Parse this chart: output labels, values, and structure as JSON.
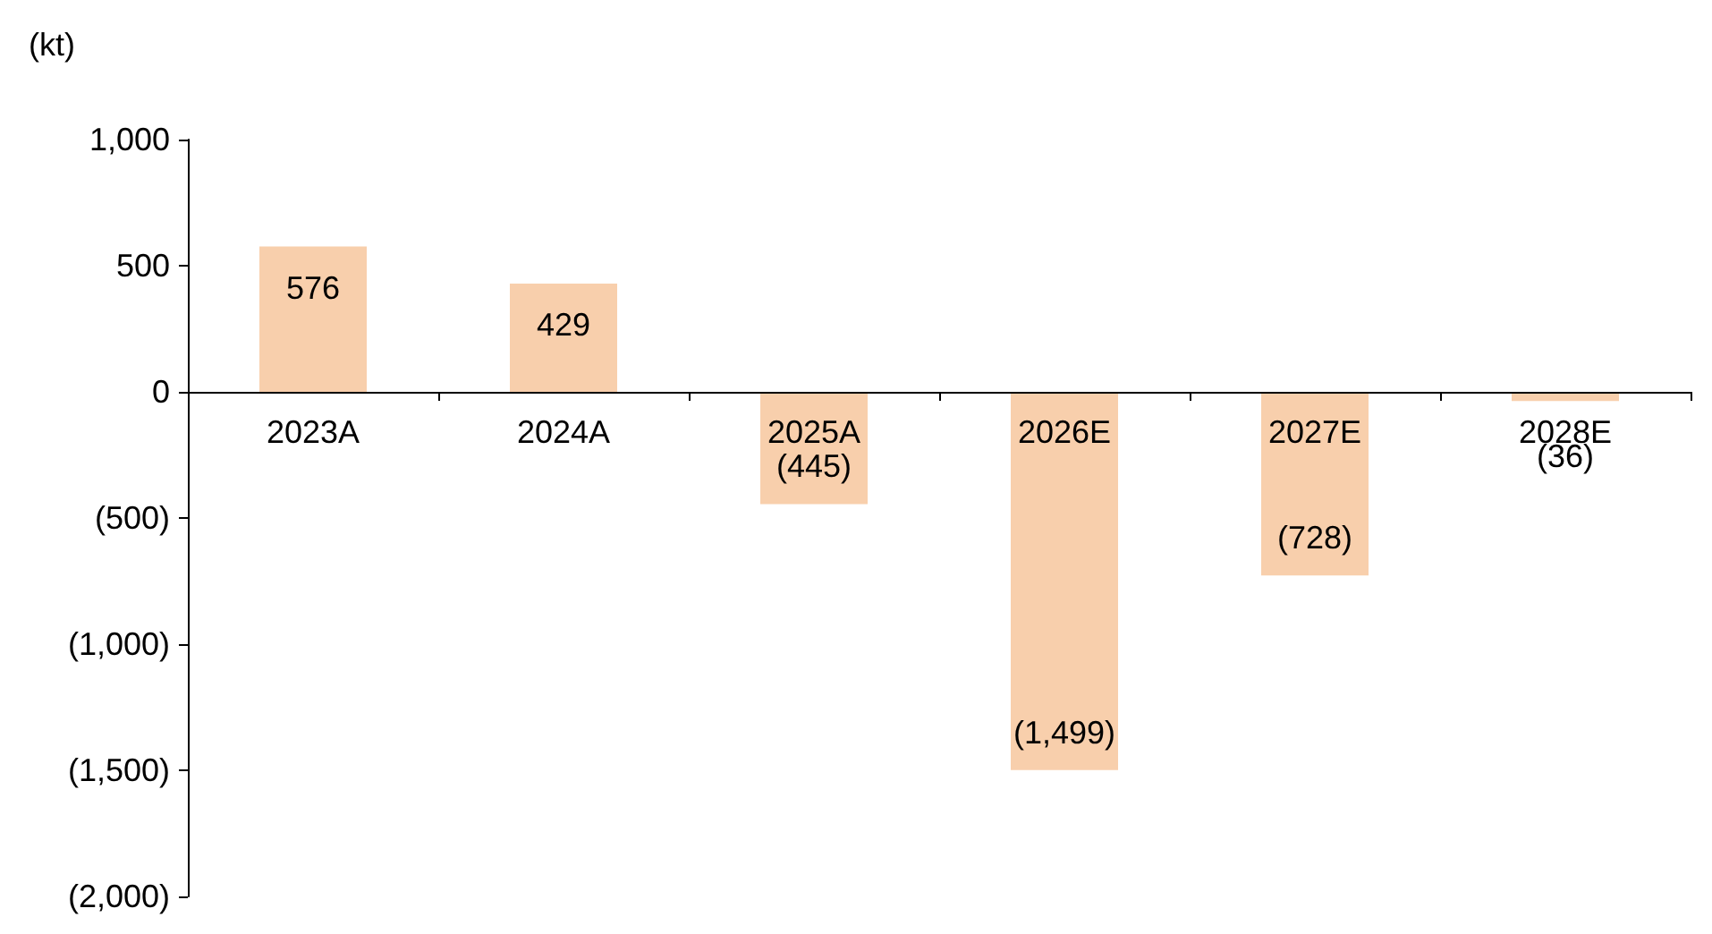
{
  "chart_data": {
    "type": "bar",
    "ylabel": "(kt)",
    "categories": [
      "2023A",
      "2024A",
      "2025A",
      "2026E",
      "2027E",
      "2028E"
    ],
    "values": [
      576,
      429,
      -445,
      -1499,
      -728,
      -36
    ],
    "value_labels": [
      "576",
      "429",
      "(445)",
      "(1,499)",
      "(728)",
      "(36)"
    ],
    "color": "#f8cfac",
    "ylim": [
      -2000,
      1000
    ],
    "yticks": [
      {
        "value": -2000,
        "label": "(2,000)"
      },
      {
        "value": -1500,
        "label": "(1,500)"
      },
      {
        "value": -1000,
        "label": "(1,000)"
      },
      {
        "value": -500,
        "label": "(500)"
      },
      0,
      500,
      {
        "value": 1000,
        "label": "1,000"
      }
    ],
    "grid": false
  }
}
